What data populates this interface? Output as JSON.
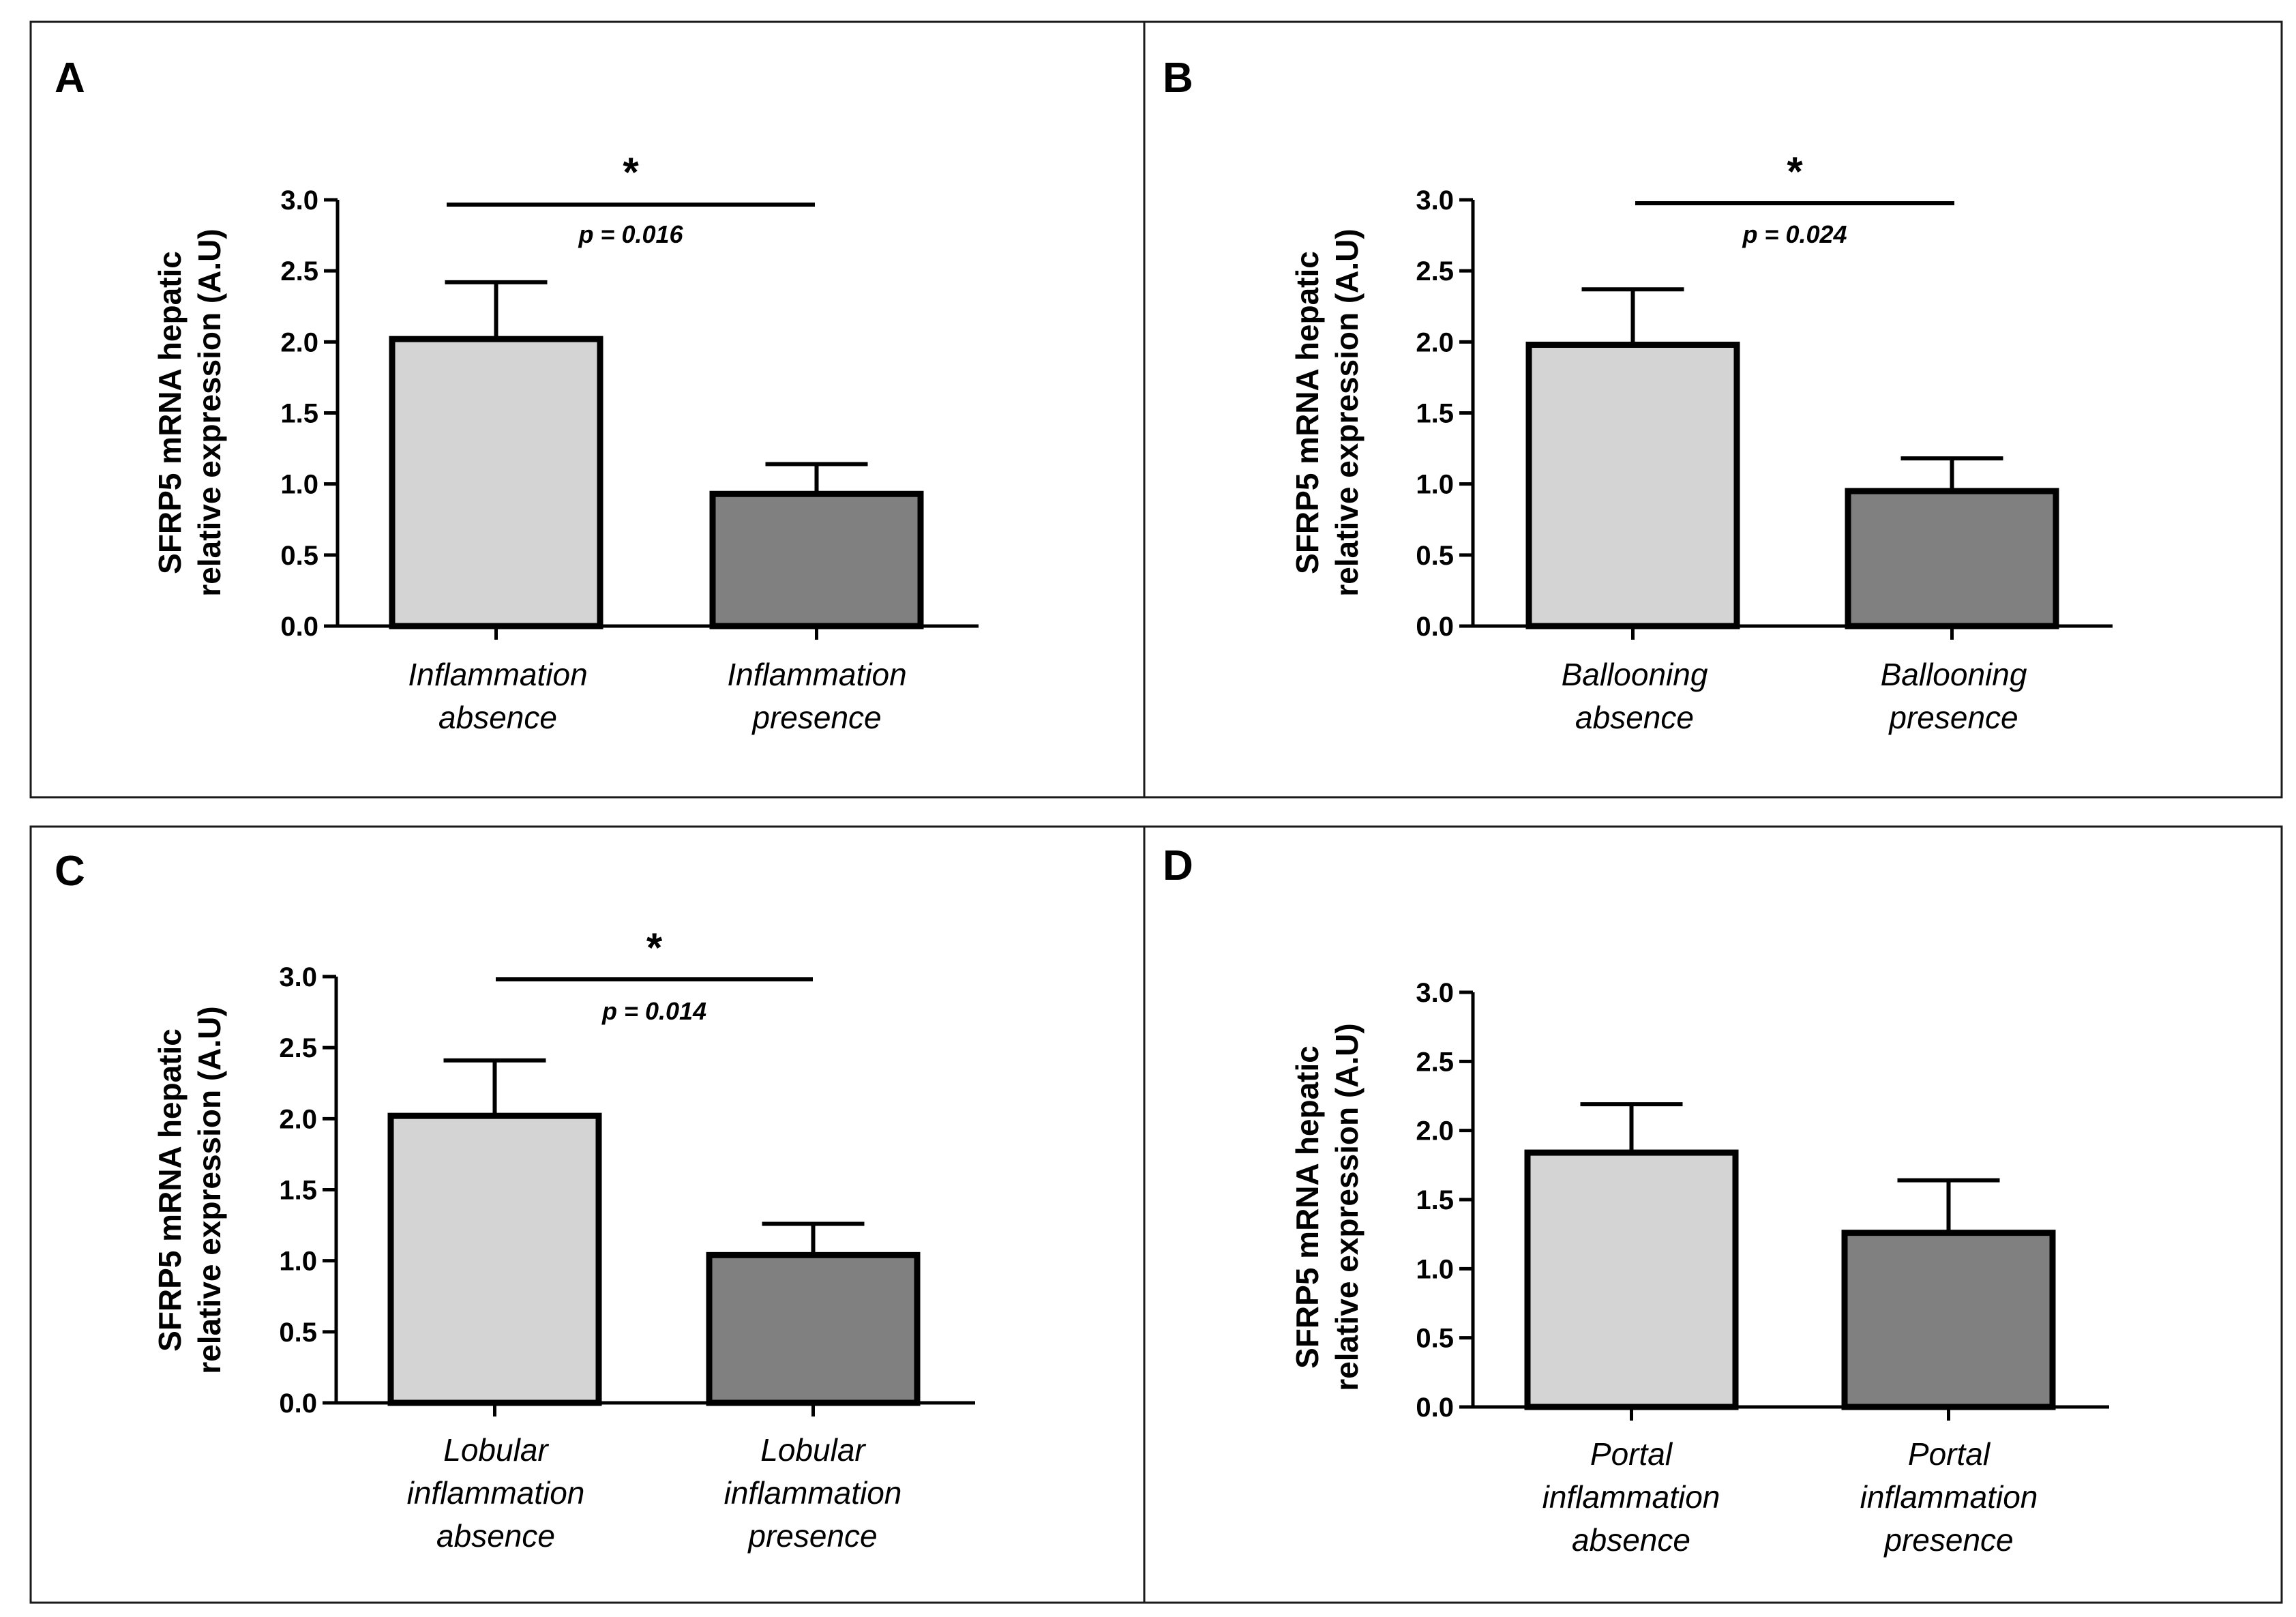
{
  "figure": {
    "colors": {
      "absence_bar": "#d4d4d4",
      "presence_bar": "#808080",
      "stroke": "#000000",
      "frame": "#1a1a1a"
    }
  },
  "chart_data": [
    {
      "panel": "A",
      "type": "bar",
      "ylabel": [
        "SFRP5 mRNA hepatic",
        "relative expression (A.U)"
      ],
      "ylim": [
        0,
        3.0
      ],
      "yticks": [
        "0.0",
        "0.5",
        "1.0",
        "1.5",
        "2.0",
        "2.5",
        "3.0"
      ],
      "categories": [
        [
          "Inflammation",
          "absence"
        ],
        [
          "Inflammation",
          "presence"
        ]
      ],
      "values": [
        2.02,
        0.93
      ],
      "errors": [
        0.4,
        0.21
      ],
      "significance": {
        "marker": "*",
        "p_text": "p = 0.016"
      }
    },
    {
      "panel": "B",
      "type": "bar",
      "ylabel": [
        "SFRP5 mRNA hepatic",
        "relative expression (A.U)"
      ],
      "ylim": [
        0,
        3.0
      ],
      "yticks": [
        "0.0",
        "0.5",
        "1.0",
        "1.5",
        "2.0",
        "2.5",
        "3.0"
      ],
      "categories": [
        [
          "Ballooning",
          "absence"
        ],
        [
          "Ballooning",
          "presence"
        ]
      ],
      "values": [
        1.98,
        0.95
      ],
      "errors": [
        0.39,
        0.23
      ],
      "significance": {
        "marker": "*",
        "p_text": "p = 0.024"
      }
    },
    {
      "panel": "C",
      "type": "bar",
      "ylabel": [
        "SFRP5 mRNA hepatic",
        "relative expression (A.U)"
      ],
      "ylim": [
        0,
        3.0
      ],
      "yticks": [
        "0.0",
        "0.5",
        "1.0",
        "1.5",
        "2.0",
        "2.5",
        "3.0"
      ],
      "categories": [
        [
          "Lobular",
          "inflammation",
          "absence"
        ],
        [
          "Lobular",
          "inflammation",
          "presence"
        ]
      ],
      "values": [
        2.02,
        1.04
      ],
      "errors": [
        0.39,
        0.22
      ],
      "significance": {
        "marker": "*",
        "p_text": "p = 0.014"
      }
    },
    {
      "panel": "D",
      "type": "bar",
      "ylabel": [
        "SFRP5 mRNA hepatic",
        "relative expression (A.U)"
      ],
      "ylim": [
        0,
        3.0
      ],
      "yticks": [
        "0.0",
        "0.5",
        "1.0",
        "1.5",
        "2.0",
        "2.5",
        "3.0"
      ],
      "categories": [
        [
          "Portal",
          "inflammation",
          "absence"
        ],
        [
          "Portal",
          "inflammation",
          "presence"
        ]
      ],
      "values": [
        1.84,
        1.26
      ],
      "errors": [
        0.35,
        0.38
      ],
      "significance": null
    }
  ]
}
